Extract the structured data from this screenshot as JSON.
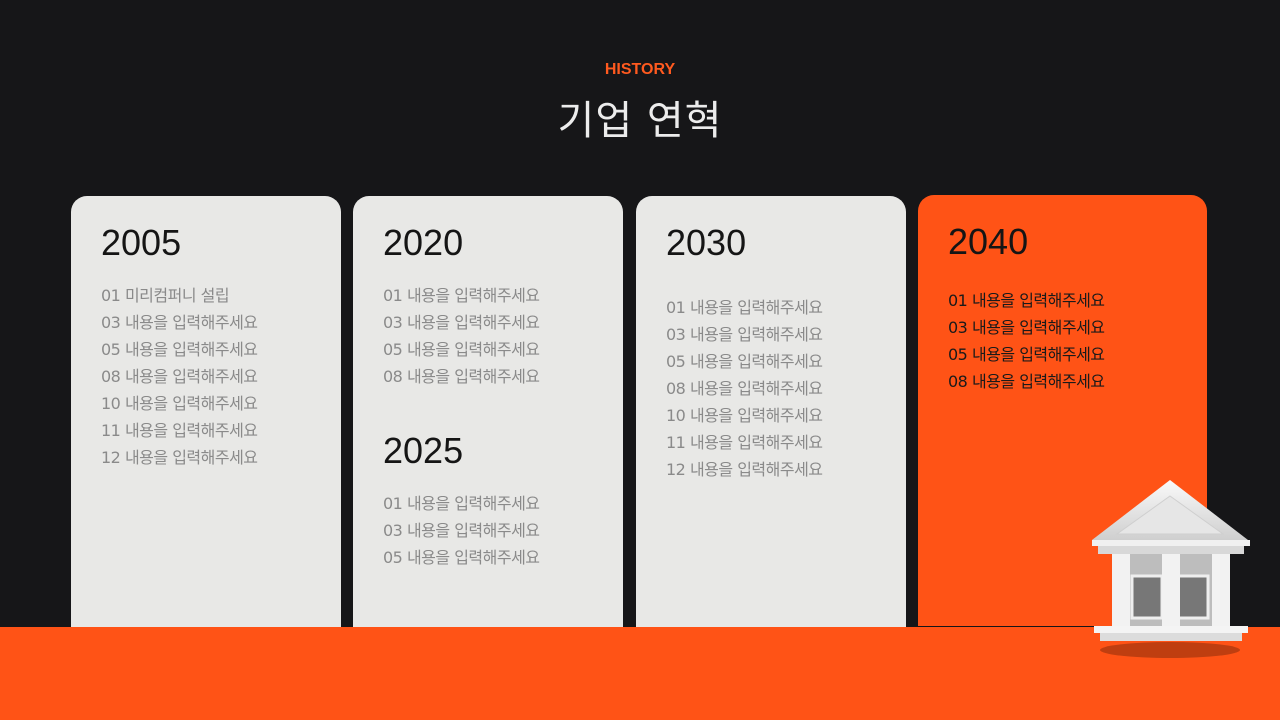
{
  "header": {
    "kicker": "HISTORY",
    "title": "기업 연혁"
  },
  "colors": {
    "background": "#161618",
    "accent": "#ff5316",
    "card": "#e8e8e6"
  },
  "cards": [
    {
      "groups": [
        {
          "year": "2005",
          "items": [
            "01 미리컴퍼니 설립",
            "03 내용을 입력해주세요",
            "05 내용을 입력해주세요",
            "08 내용을 입력해주세요",
            "10 내용을 입력해주세요",
            "11 내용을 입력해주세요",
            "12 내용을 입력해주세요"
          ]
        }
      ]
    },
    {
      "groups": [
        {
          "year": "2020",
          "items": [
            "01 내용을 입력해주세요",
            "03 내용을 입력해주세요",
            "05 내용을 입력해주세요",
            "08 내용을 입력해주세요"
          ]
        },
        {
          "year": "2025",
          "items": [
            "01 내용을 입력해주세요",
            "03 내용을 입력해주세요",
            "05 내용을 입력해주세요"
          ]
        }
      ]
    },
    {
      "groups": [
        {
          "year": "2030",
          "items": [
            "01 내용을 입력해주세요",
            "03 내용을 입력해주세요",
            "05 내용을 입력해주세요",
            "08 내용을 입력해주세요",
            "10 내용을 입력해주세요",
            "11 내용을 입력해주세요",
            "12 내용을 입력해주세요"
          ]
        }
      ]
    },
    {
      "groups": [
        {
          "year": "2040",
          "items": [
            "01 내용을 입력해주세요",
            "03 내용을 입력해주세요",
            "05 내용을 입력해주세요",
            "08 내용을 입력해주세요"
          ]
        }
      ]
    }
  ],
  "icons": {
    "building": "bank-building-icon"
  }
}
